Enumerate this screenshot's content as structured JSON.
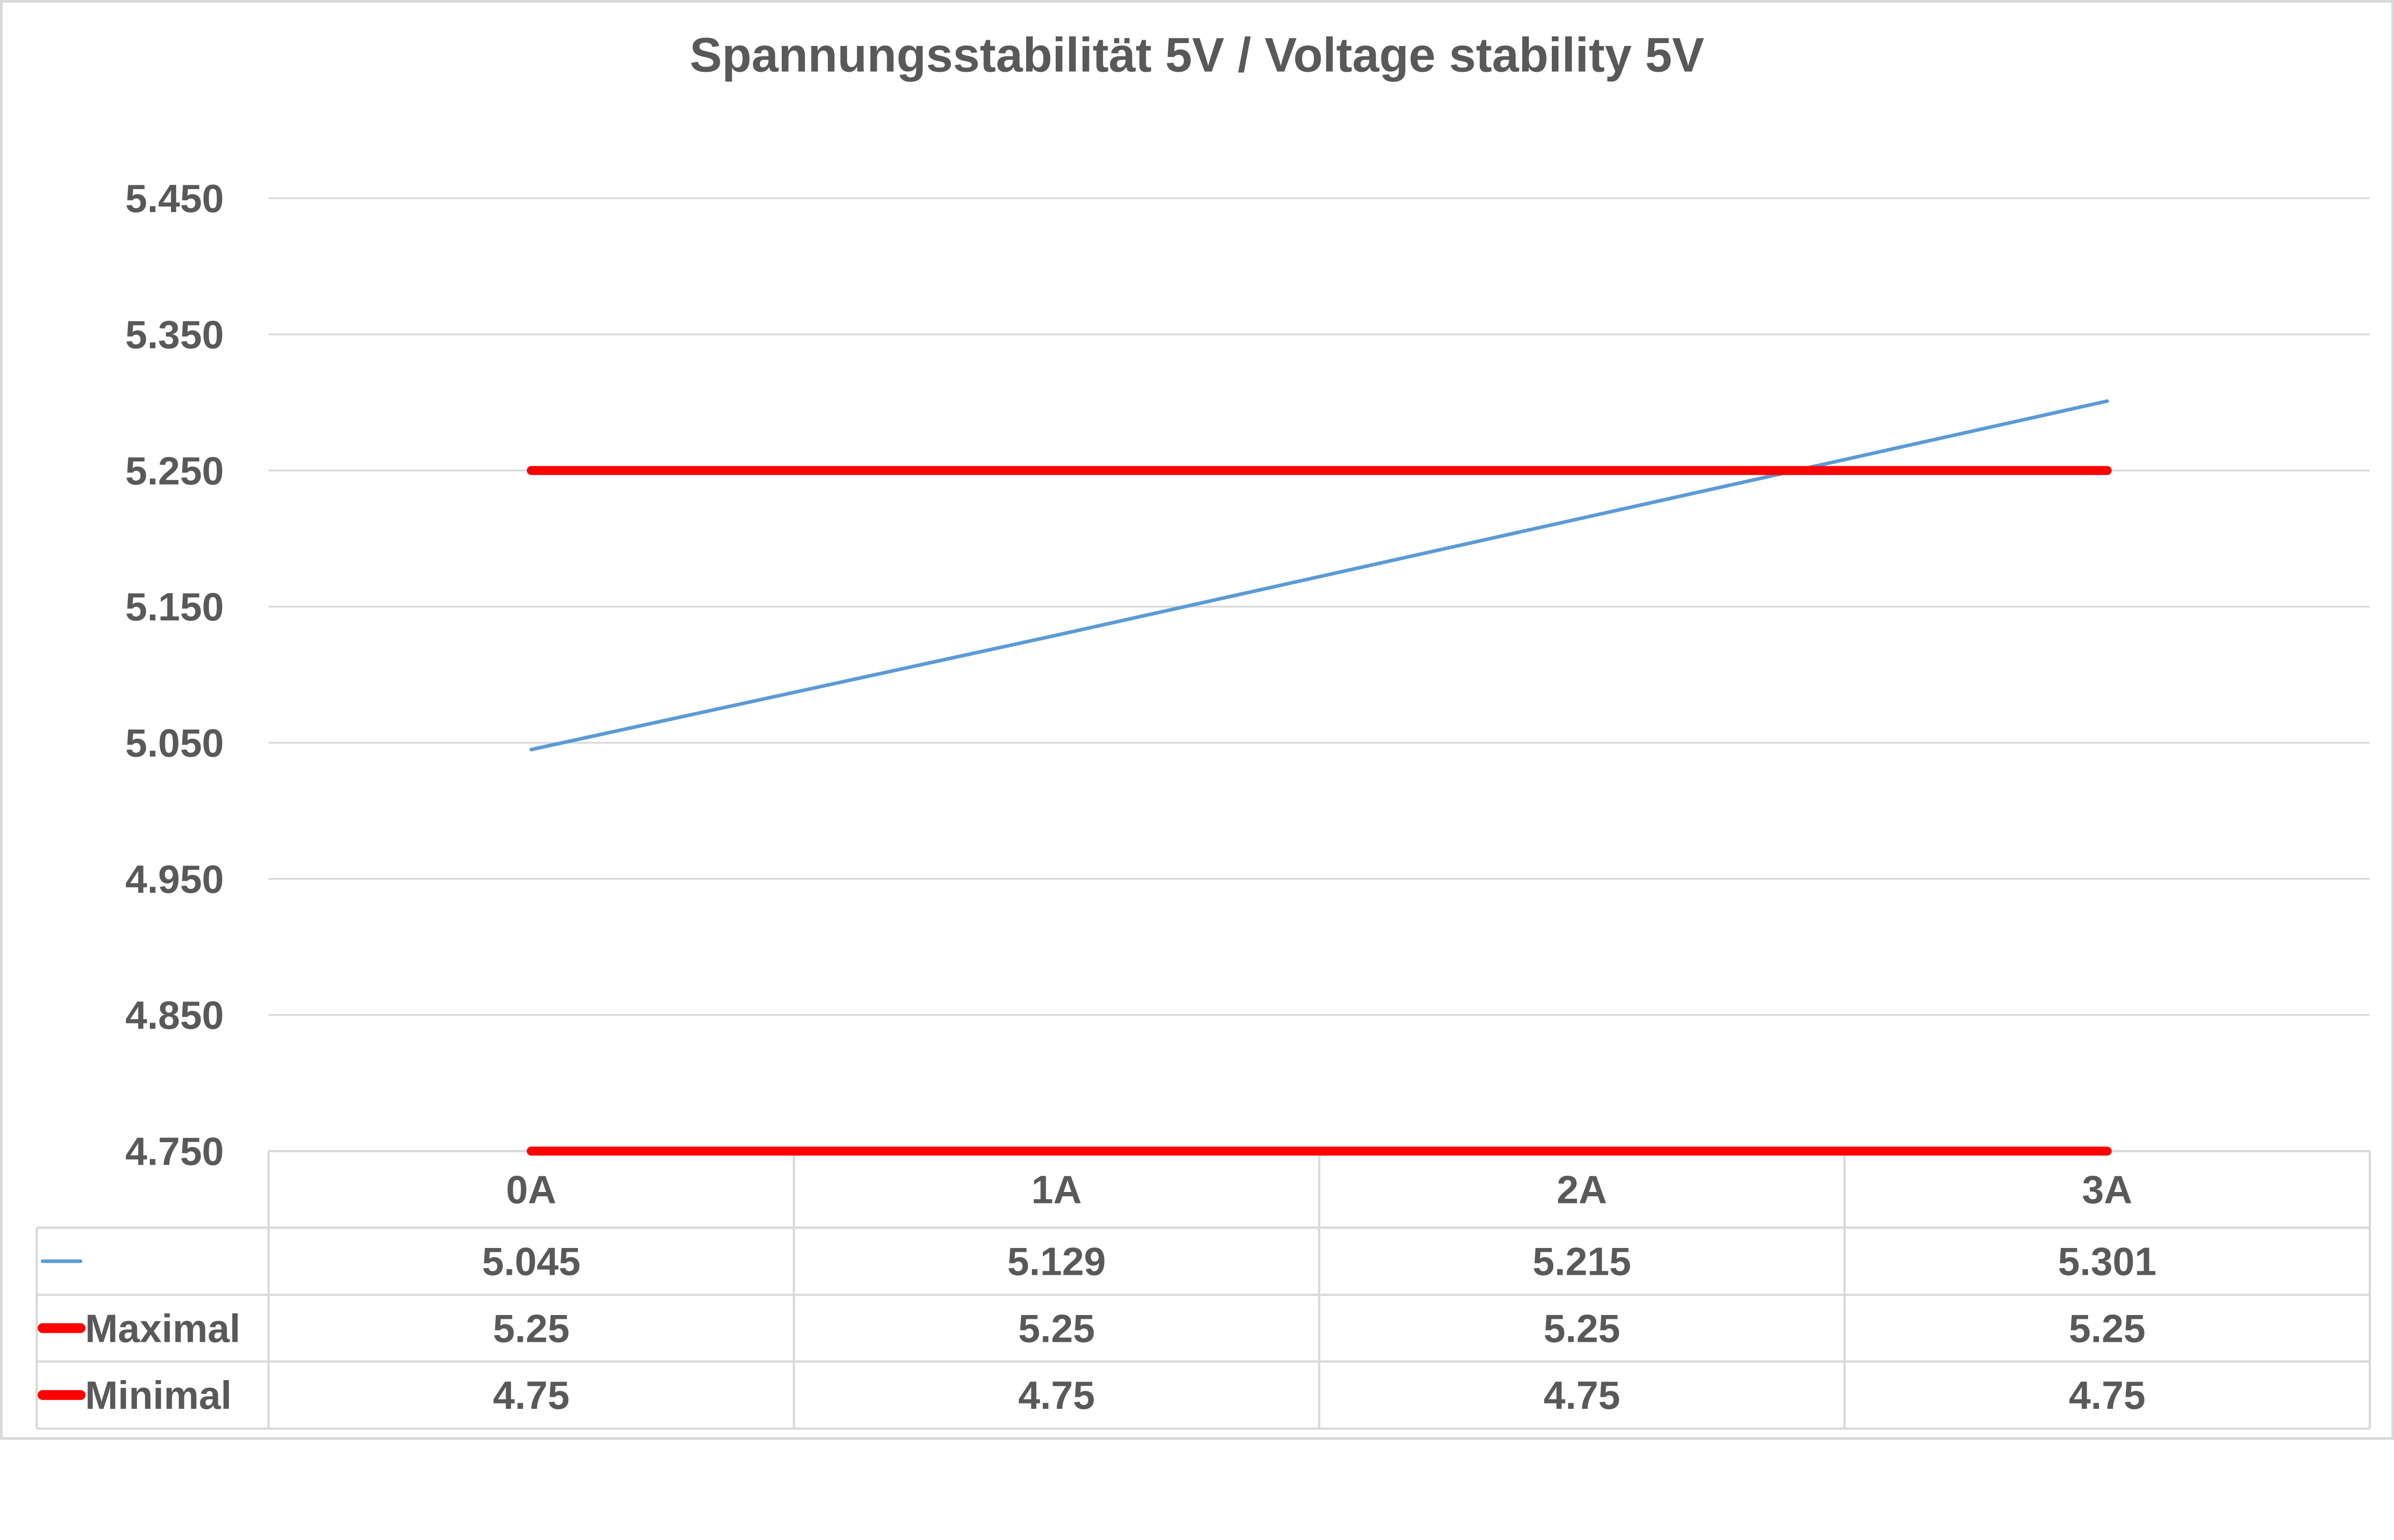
{
  "chart_data": {
    "type": "line",
    "title": "Spannungsstabilität 5V / Voltage stability 5V",
    "xlabel": "",
    "ylabel": "",
    "categories": [
      "0A",
      "1A",
      "2A",
      "3A"
    ],
    "ylim": [
      4.75,
      5.45
    ],
    "yticks": [
      "5.450",
      "5.350",
      "5.250",
      "5.150",
      "5.050",
      "4.950",
      "4.850",
      "4.750"
    ],
    "ytick_values": [
      5.45,
      5.35,
      5.25,
      5.15,
      5.05,
      4.95,
      4.85,
      4.75
    ],
    "grid": true,
    "legend": "data-table",
    "series": [
      {
        "name": "",
        "values": [
          5.045,
          5.129,
          5.215,
          5.301
        ],
        "labels": [
          "5.045",
          "5.129",
          "5.215",
          "5.301"
        ],
        "color": "#5b9bd5"
      },
      {
        "name": "Maximal",
        "values": [
          5.25,
          5.25,
          5.25,
          5.25
        ],
        "labels": [
          "5.25",
          "5.25",
          "5.25",
          "5.25"
        ],
        "color": "#ff0000"
      },
      {
        "name": "Minimal",
        "values": [
          4.75,
          4.75,
          4.75,
          4.75
        ],
        "labels": [
          "4.75",
          "4.75",
          "4.75",
          "4.75"
        ],
        "color": "#ff0000"
      }
    ]
  }
}
